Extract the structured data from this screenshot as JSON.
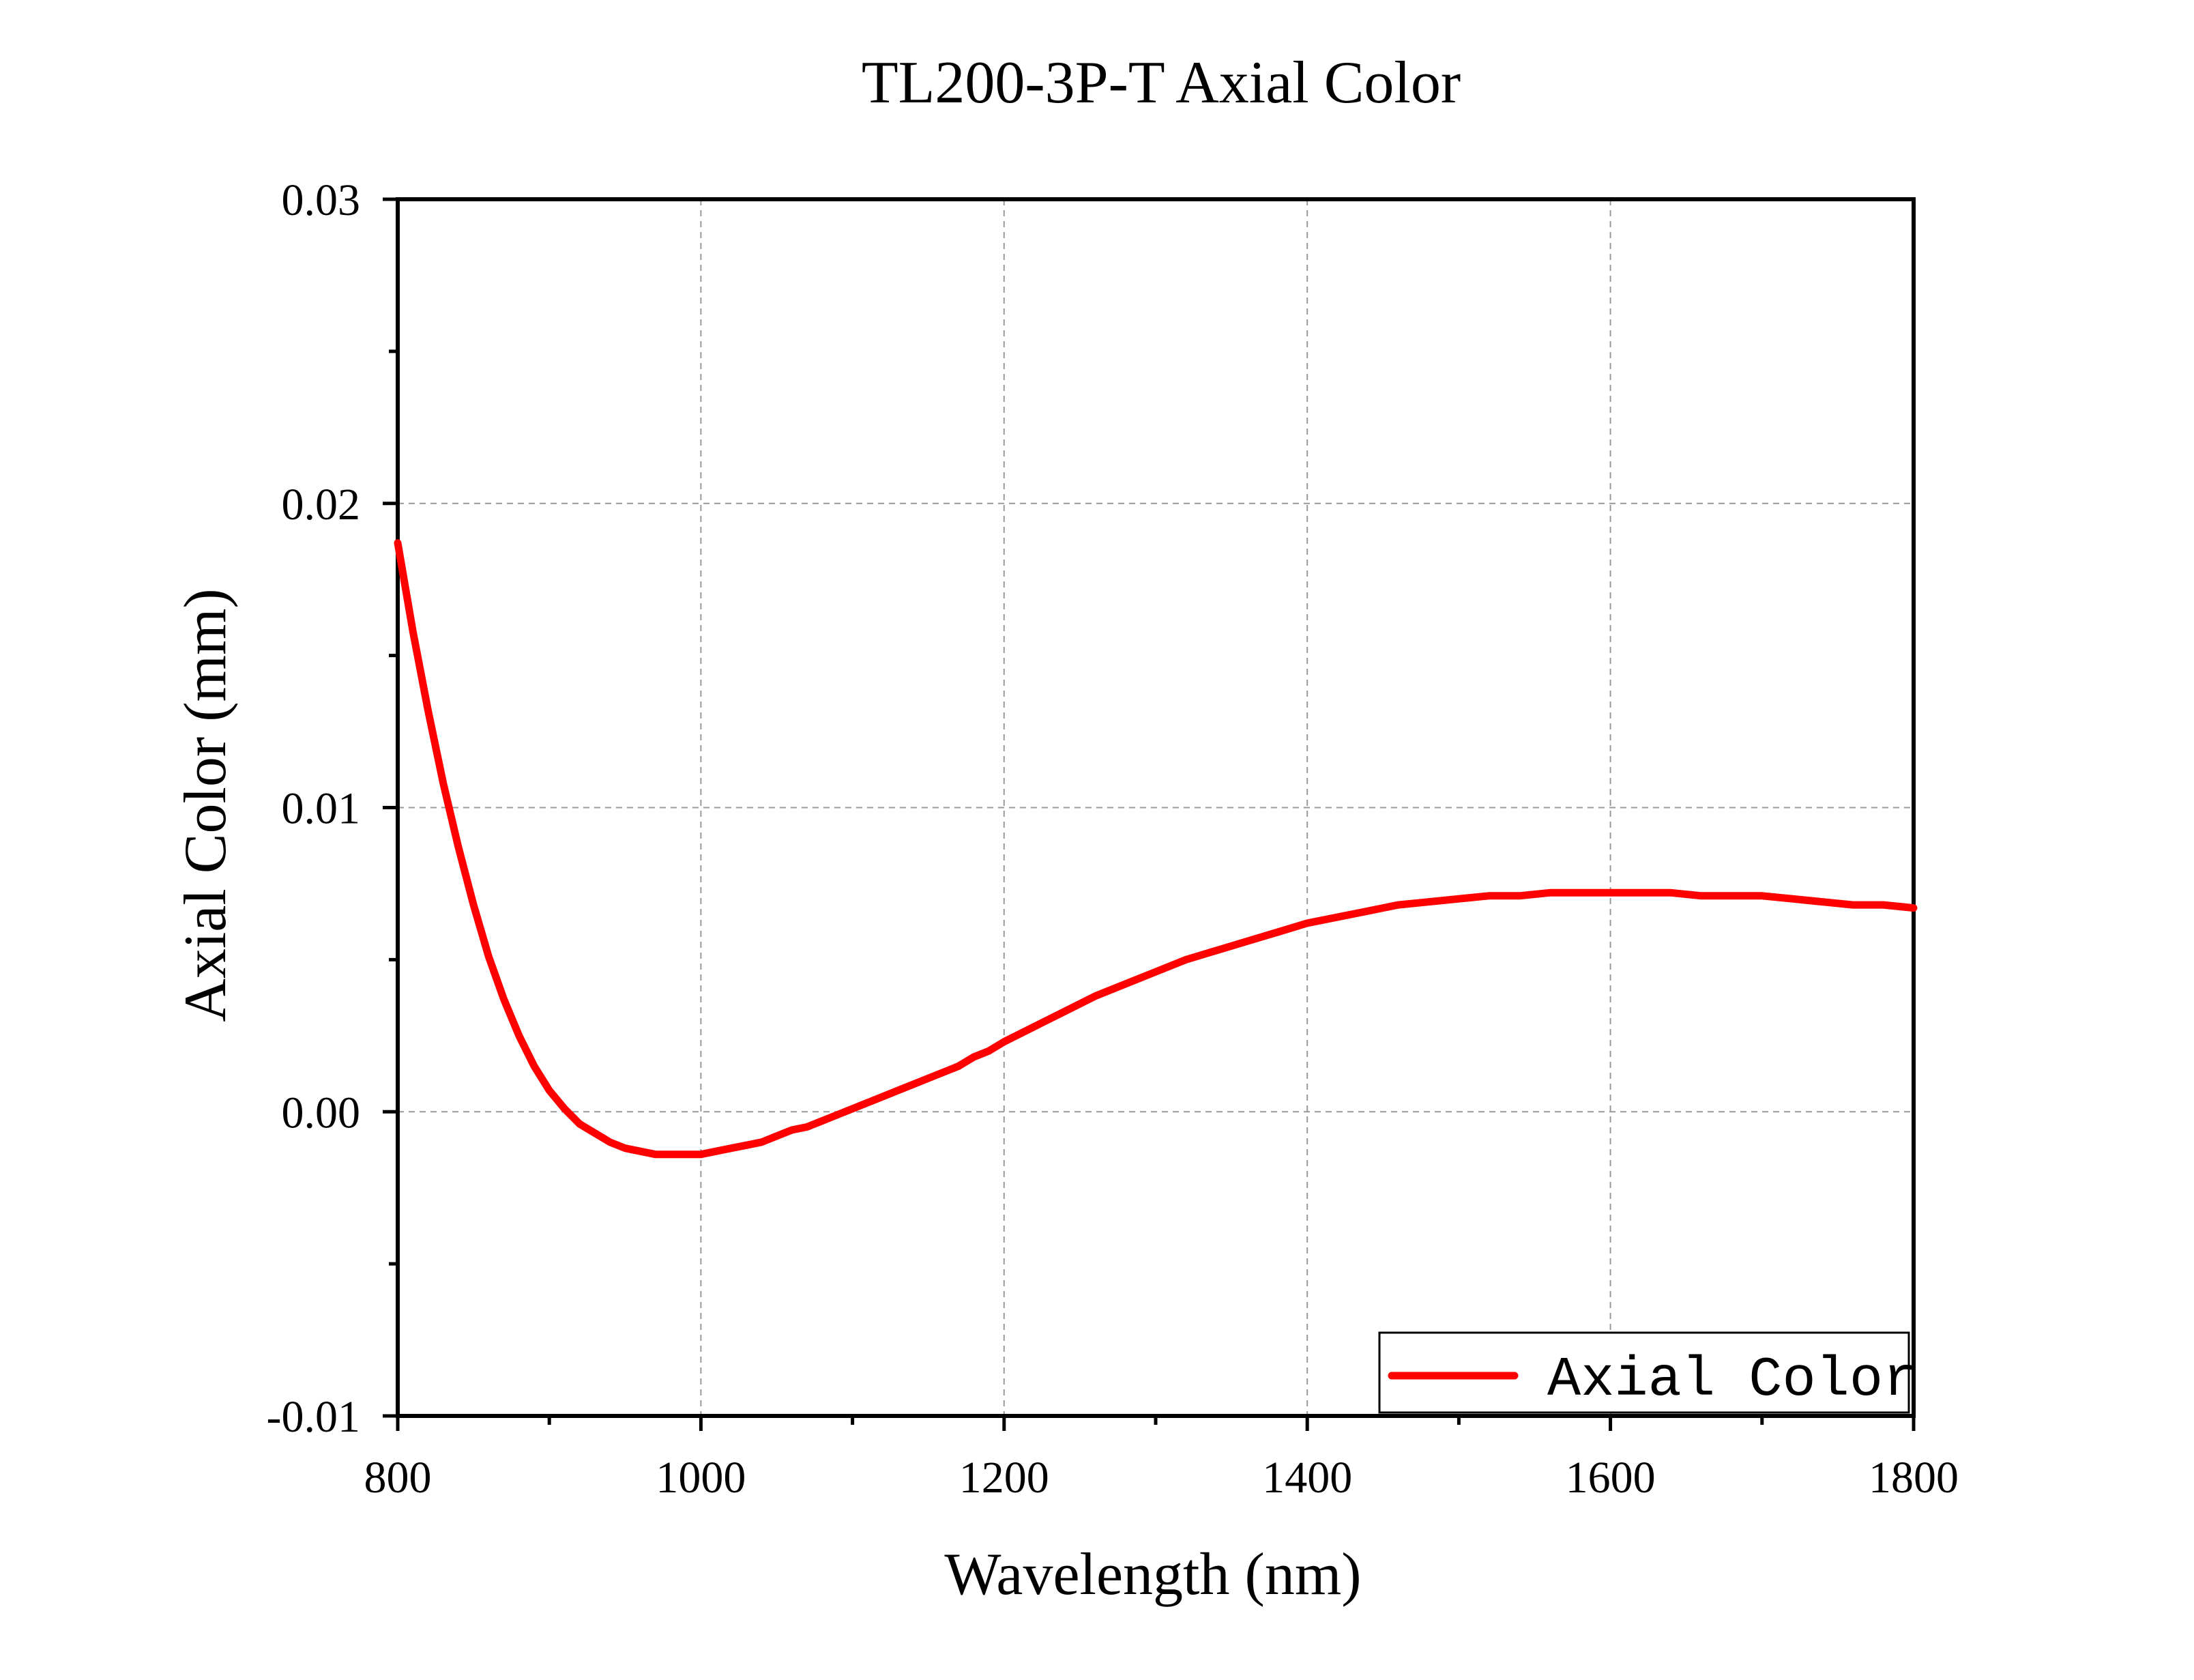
{
  "chart_data": {
    "type": "line",
    "title": "TL200-3P-T Axial Color",
    "xlabel": "Wavelength (nm)",
    "ylabel": "Axial Color (mm)",
    "xlim": [
      800,
      1800
    ],
    "ylim": [
      -0.01,
      0.03
    ],
    "xticks": [
      800,
      1000,
      1200,
      1400,
      1600,
      1800
    ],
    "xtick_labels": [
      "800",
      "1000",
      "1200",
      "1400",
      "1600",
      "1800"
    ],
    "yticks": [
      -0.01,
      0.0,
      0.01,
      0.02,
      0.03
    ],
    "ytick_labels": [
      "-0.01",
      "0.00",
      "0.01",
      "0.02",
      "0.03"
    ],
    "grid": true,
    "legend_position": "bottom-right",
    "series": [
      {
        "name": "Axial Color",
        "color": "#ff0000",
        "x": [
          800,
          810,
          820,
          830,
          840,
          850,
          860,
          870,
          880,
          890,
          900,
          910,
          920,
          930,
          940,
          950,
          960,
          970,
          980,
          990,
          1000,
          1010,
          1020,
          1030,
          1040,
          1050,
          1060,
          1070,
          1080,
          1090,
          1100,
          1110,
          1120,
          1130,
          1140,
          1150,
          1160,
          1170,
          1180,
          1190,
          1200,
          1220,
          1240,
          1260,
          1280,
          1300,
          1320,
          1340,
          1360,
          1380,
          1400,
          1420,
          1440,
          1460,
          1480,
          1500,
          1520,
          1540,
          1560,
          1580,
          1600,
          1620,
          1640,
          1660,
          1680,
          1700,
          1720,
          1740,
          1760,
          1780,
          1800
        ],
        "values": [
          0.0187,
          0.0158,
          0.0132,
          0.0108,
          0.0087,
          0.0068,
          0.0051,
          0.0037,
          0.0025,
          0.0015,
          0.0007,
          0.0001,
          -0.0004,
          -0.0007,
          -0.001,
          -0.0012,
          -0.0013,
          -0.0014,
          -0.0014,
          -0.0014,
          -0.0014,
          -0.0013,
          -0.0012,
          -0.0011,
          -0.001,
          -0.0008,
          -0.0006,
          -0.0005,
          -0.0003,
          -0.0001,
          0.0001,
          0.0003,
          0.0005,
          0.0007,
          0.0009,
          0.0011,
          0.0013,
          0.0015,
          0.0018,
          0.002,
          0.0023,
          0.0028,
          0.0033,
          0.0038,
          0.0042,
          0.0046,
          0.005,
          0.0053,
          0.0056,
          0.0059,
          0.0062,
          0.0064,
          0.0066,
          0.0068,
          0.0069,
          0.007,
          0.0071,
          0.0071,
          0.0072,
          0.0072,
          0.0072,
          0.0072,
          0.0072,
          0.0071,
          0.0071,
          0.0071,
          0.007,
          0.0069,
          0.0068,
          0.0068,
          0.0067
        ]
      }
    ]
  }
}
